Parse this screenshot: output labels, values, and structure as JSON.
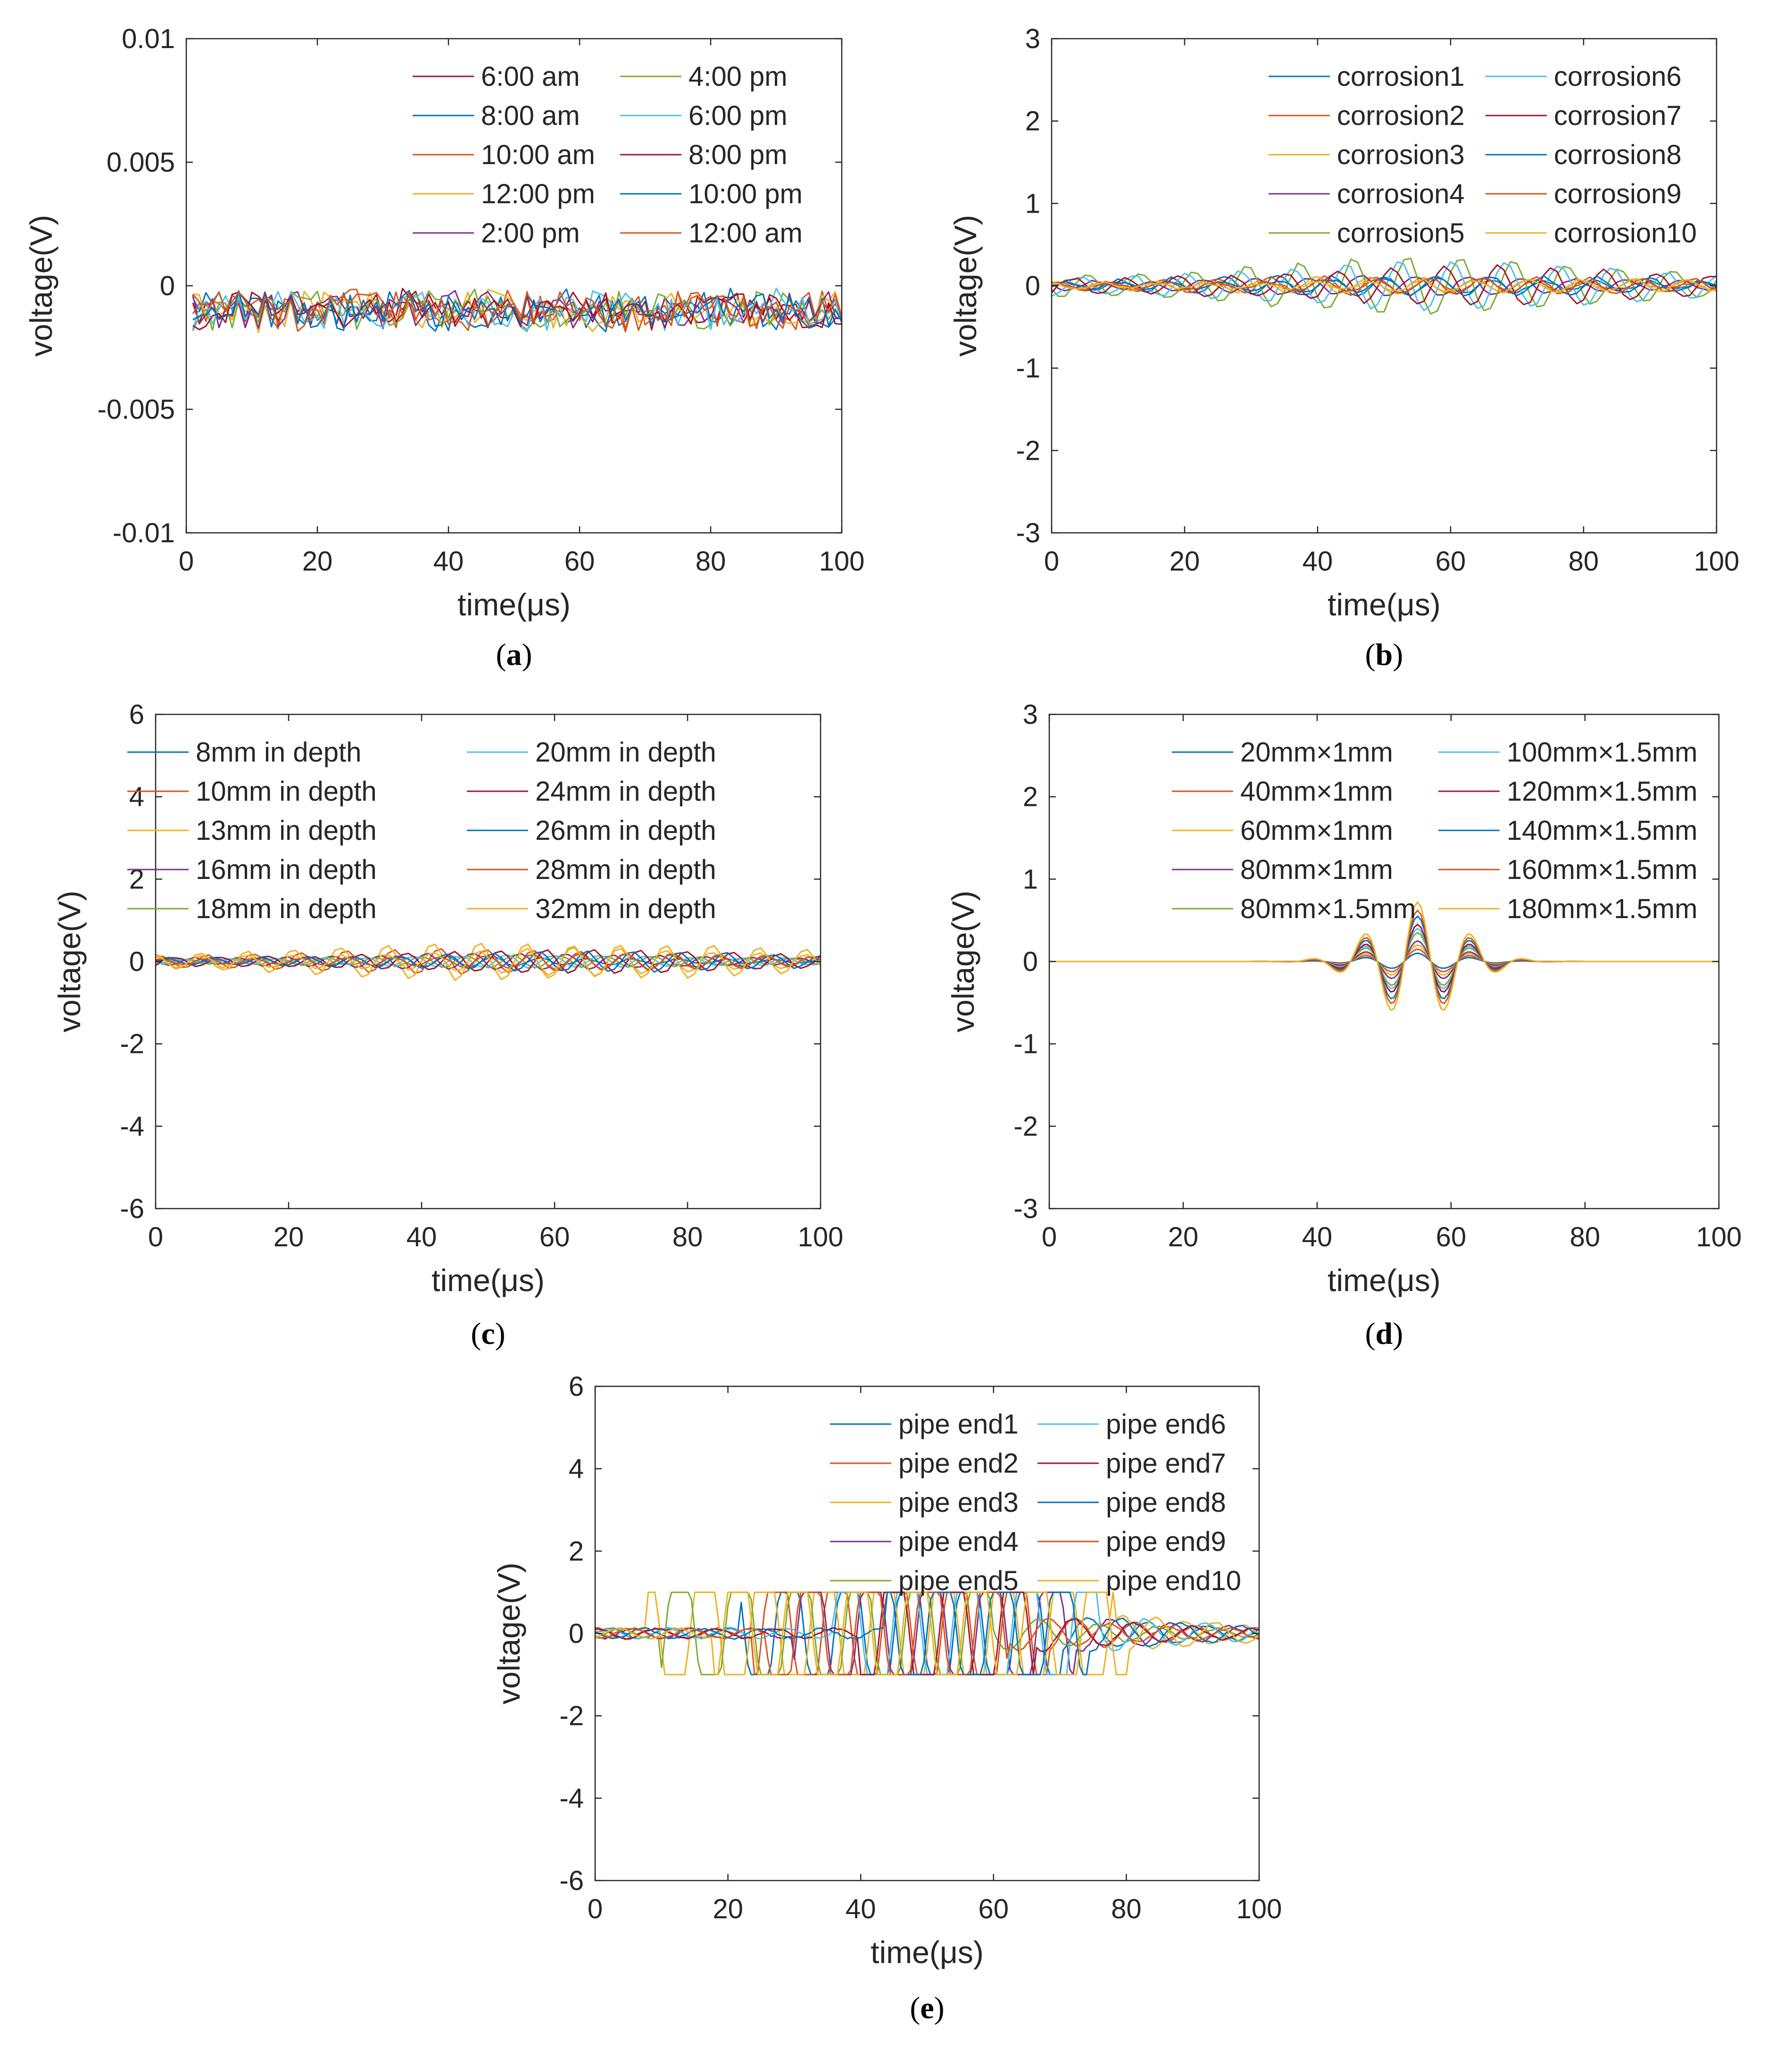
{
  "figure": {
    "panel_order": [
      "a",
      "b",
      "c",
      "d",
      "e"
    ]
  },
  "colors": {
    "palette": [
      "#0072BD",
      "#D95319",
      "#EDB120",
      "#7E2F8E",
      "#77AC30",
      "#4DBEEE",
      "#A2142F",
      "#0072BD",
      "#D95319",
      "#EDB120"
    ],
    "axis": "#262626",
    "background": "#FFFFFF"
  },
  "chart_data": [
    {
      "id": "a",
      "panel_label": "a",
      "type": "line",
      "xlabel": "time(μs)",
      "ylabel": "voltage(V)",
      "xlim": [
        0,
        100
      ],
      "ylim": [
        -0.01,
        0.01
      ],
      "xticks": [
        0,
        20,
        40,
        60,
        80,
        100
      ],
      "yticks": [
        -0.01,
        -0.005,
        0,
        0.005,
        0.01
      ],
      "ytick_labels": [
        "-0.01",
        "-0.005",
        "0",
        "0.005",
        "0.01"
      ],
      "legend_position": "top-right",
      "legend_columns": 2,
      "series_colors": [
        "#A2142F",
        "#0072BD",
        "#D95319",
        "#EDB120",
        "#7E2F8E",
        "#77AC30",
        "#4DBEEE",
        "#A2142F",
        "#0072BD",
        "#D95319"
      ],
      "series_names": [
        "6:00 am",
        "8:00 am",
        "10:00 am",
        "12:00 pm",
        "2:00 pm",
        "4:00 pm",
        "6:00 pm",
        "8:00 pm",
        "10:00 pm",
        "12:00 am"
      ],
      "signal": {
        "kind": "noise",
        "base": -0.001,
        "amp": 0.0007,
        "x_start": 1,
        "step": 1
      }
    },
    {
      "id": "b",
      "panel_label": "b",
      "type": "line",
      "xlabel": "time(μs)",
      "ylabel": "voltage(V)",
      "xlim": [
        0,
        100
      ],
      "ylim": [
        -3,
        3
      ],
      "xticks": [
        0,
        20,
        40,
        60,
        80,
        100
      ],
      "yticks": [
        -3,
        -2,
        -1,
        0,
        1,
        2,
        3
      ],
      "ytick_labels": [
        "-3",
        "-2",
        "-1",
        "0",
        "1",
        "2",
        "3"
      ],
      "legend_position": "top-right",
      "legend_columns": 2,
      "series_colors": [
        "#0072BD",
        "#D95319",
        "#EDB120",
        "#7E2F8E",
        "#77AC30",
        "#4DBEEE",
        "#A2142F",
        "#0072BD",
        "#D95319",
        "#EDB120"
      ],
      "series_names": [
        "corrosion1",
        "corrosion2",
        "corrosion3",
        "corrosion4",
        "corrosion5",
        "corrosion6",
        "corrosion7",
        "corrosion8",
        "corrosion9",
        "corrosion10"
      ],
      "signal": {
        "kind": "wave",
        "amps": [
          0.12,
          0.1,
          0.1,
          0.12,
          0.35,
          0.3,
          0.25,
          0.12,
          0.1,
          0.08
        ],
        "period": 8,
        "noise": 0.04
      }
    },
    {
      "id": "c",
      "panel_label": "c",
      "type": "line",
      "xlabel": "time(μs)",
      "ylabel": "voltage(V)",
      "xlim": [
        0,
        100
      ],
      "ylim": [
        -6,
        6
      ],
      "xticks": [
        0,
        20,
        40,
        60,
        80,
        100
      ],
      "yticks": [
        -6,
        -4,
        -2,
        0,
        2,
        4,
        6
      ],
      "ytick_labels": [
        "-6",
        "-4",
        "-2",
        "0",
        "2",
        "4",
        "6"
      ],
      "legend_position": "top-right",
      "legend_columns": 2,
      "series_colors": [
        "#0072BD",
        "#D95319",
        "#EDB120",
        "#7E2F8E",
        "#77AC30",
        "#4DBEEE",
        "#A2142F",
        "#0072BD",
        "#D95319",
        "#EDB120"
      ],
      "series_names": [
        "8mm in depth",
        "10mm in depth",
        "13mm in depth",
        "16mm in depth",
        "18mm in depth",
        "20mm in depth",
        "24mm in depth",
        "26mm in depth",
        "28mm in depth",
        "32mm in depth"
      ],
      "signal": {
        "kind": "wave",
        "amps": [
          0.12,
          0.3,
          0.45,
          0.2,
          0.15,
          0.15,
          0.3,
          0.25,
          0.2,
          0.4
        ],
        "period": 7,
        "noise": 0.04
      }
    },
    {
      "id": "d",
      "panel_label": "d",
      "type": "line",
      "xlabel": "time(μs)",
      "ylabel": "voltage(V)",
      "xlim": [
        0,
        100
      ],
      "ylim": [
        -3,
        3
      ],
      "xticks": [
        0,
        20,
        40,
        60,
        80,
        100
      ],
      "yticks": [
        -3,
        -2,
        -1,
        0,
        1,
        2,
        3
      ],
      "ytick_labels": [
        "-3",
        "-2",
        "-1",
        "0",
        "1",
        "2",
        "3"
      ],
      "legend_position": "top-right",
      "legend_columns": 2,
      "series_colors": [
        "#0072BD",
        "#D95319",
        "#EDB120",
        "#7E2F8E",
        "#77AC30",
        "#4DBEEE",
        "#A2142F",
        "#0072BD",
        "#D95319",
        "#EDB120"
      ],
      "series_names": [
        "20mm×1mm",
        "40mm×1mm",
        "60mm×1mm",
        "80mm×1mm",
        "80mm×1.5mm",
        "100mm×1.5mm",
        "120mm×1.5mm",
        "140mm×1.5mm",
        "160mm×1.5mm",
        "180mm×1.5mm"
      ],
      "signal": {
        "kind": "burst",
        "center": 55,
        "period": 8,
        "width": 9,
        "peaks": [
          0.1,
          0.15,
          0.2,
          0.25,
          0.35,
          0.4,
          0.45,
          0.55,
          0.62,
          0.72
        ]
      }
    },
    {
      "id": "e",
      "panel_label": "e",
      "type": "line",
      "xlabel": "time(μs)",
      "ylabel": "voltage(V)",
      "xlim": [
        0,
        100
      ],
      "ylim": [
        -6,
        6
      ],
      "xticks": [
        0,
        20,
        40,
        60,
        80,
        100
      ],
      "yticks": [
        -6,
        -4,
        -2,
        0,
        2,
        4,
        6
      ],
      "ytick_labels": [
        "-6",
        "-4",
        "-2",
        "0",
        "2",
        "4",
        "6"
      ],
      "legend_position": "top-right",
      "legend_columns": 2,
      "series_colors": [
        "#0072BD",
        "#D95319",
        "#EDB120",
        "#7E2F8E",
        "#77AC30",
        "#4DBEEE",
        "#A2142F",
        "#0072BD",
        "#D95319",
        "#EDB120"
      ],
      "series_names": [
        "pipe end1",
        "pipe end2",
        "pipe end3",
        "pipe end4",
        "pipe end5",
        "pipe end6",
        "pipe end7",
        "pipe end8",
        "pipe end9",
        "pipe end10"
      ],
      "signal": {
        "kind": "clipped",
        "clip": 1,
        "sat_start": [
          22,
          24,
          8,
          30,
          10,
          36,
          40,
          44,
          26,
          18
        ],
        "sat_end": [
          70,
          68,
          78,
          72,
          60,
          76,
          66,
          74,
          62,
          80
        ],
        "period": 9
      }
    }
  ]
}
